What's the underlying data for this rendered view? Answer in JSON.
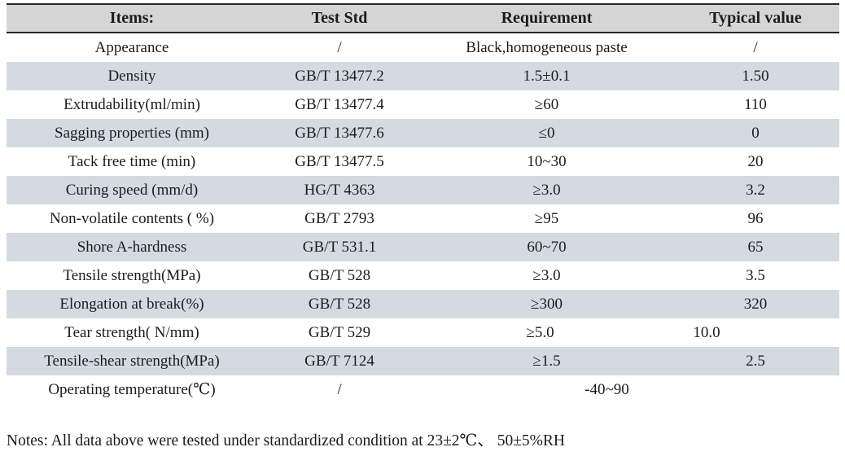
{
  "table": {
    "headers": [
      "Items:",
      "Test Std",
      "Requirement",
      "Typical value"
    ],
    "rows": [
      {
        "item": "Appearance",
        "std": "/",
        "req": "Black,homogeneous paste",
        "typ": "/"
      },
      {
        "item": "Density",
        "std": "GB/T 13477.2",
        "req": "1.5±0.1",
        "typ": "1.50"
      },
      {
        "item": "Extrudability(ml/min)",
        "std": "GB/T 13477.4",
        "req": "≥60",
        "typ": "110"
      },
      {
        "item": "Sagging properties (mm)",
        "std": "GB/T 13477.6",
        "req": "≤0",
        "typ": "0"
      },
      {
        "item": "Tack free time (min)",
        "std": "GB/T 13477.5",
        "req": "10~30",
        "typ": "20"
      },
      {
        "item": "Curing speed (mm/d)",
        "std": "HG/T 4363",
        "req": "≥3.0",
        "typ": "3.2"
      },
      {
        "item": "Non-volatile contents ( %)",
        "std": "GB/T 2793",
        "req": "≥95",
        "typ": "96"
      },
      {
        "item": "Shore A-hardness",
        "std": "GB/T 531.1",
        "req": "60~70",
        "typ": "65"
      },
      {
        "item": "Tensile strength(MPa)",
        "std": "GB/T 528",
        "req": "≥3.0",
        "typ": "3.5"
      },
      {
        "item": "Elongation at break(%)",
        "std": "GB/T 528",
        "req": "≥300",
        "typ": "320"
      },
      {
        "item": "Tear strength( N/mm)",
        "std": "GB/T 529",
        "req": "≥5.0",
        "typ": "10.0"
      },
      {
        "item": "Tensile-shear strength(MPa)",
        "std": "GB/T 7124",
        "req": "≥1.5",
        "typ": "2.5"
      },
      {
        "item": "Operating temperature(℃)",
        "std": "/",
        "req": "-40~90",
        "typ": ""
      }
    ]
  },
  "notes": "Notes: All data above were tested under standardized condition at 23±2℃、 50±5%RH",
  "colors": {
    "header_bg": "#d5d5d5",
    "band_bg": "#d4dae2",
    "border": "#262626",
    "text": "#1c1c1c"
  }
}
